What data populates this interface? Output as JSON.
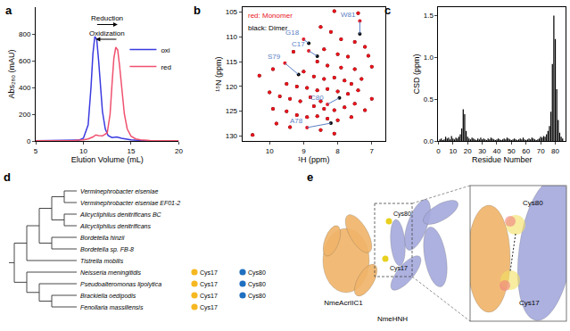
{
  "chart_data": [
    {
      "panel": "a",
      "type": "line",
      "x_label": "Elution Volume (mL)",
      "y_label": "Abs₂₈₀ (mAU)",
      "xlim": [
        5,
        20
      ],
      "xticks": [
        5,
        10,
        15,
        20
      ],
      "ylim": [
        0,
        1000
      ],
      "yticks": [
        0,
        200,
        400,
        600,
        800
      ],
      "legend": "upper right",
      "series": [
        {
          "name": "oxi",
          "color": "#3a3ae0",
          "x": [
            5,
            6,
            7,
            8,
            9,
            9.5,
            10,
            10.5,
            10.8,
            11,
            11.2,
            11.4,
            11.6,
            11.8,
            12,
            12.3,
            12.6,
            13,
            13.5,
            14,
            15,
            16,
            17,
            18,
            19,
            20
          ],
          "values": [
            2,
            2,
            2,
            3,
            4,
            6,
            20,
            120,
            400,
            650,
            780,
            760,
            600,
            380,
            220,
            90,
            40,
            25,
            30,
            20,
            8,
            4,
            3,
            2,
            2,
            2
          ]
        },
        {
          "name": "red",
          "color": "#f0506e",
          "x": [
            5,
            6,
            7,
            8,
            9,
            10,
            10.5,
            11,
            11.3,
            11.6,
            12,
            12.5,
            12.8,
            13,
            13.2,
            13.4,
            13.6,
            13.8,
            14,
            14.3,
            14.6,
            15,
            15.5,
            16,
            17,
            18,
            19,
            20
          ],
          "values": [
            2,
            2,
            2,
            3,
            4,
            8,
            15,
            30,
            45,
            40,
            38,
            60,
            200,
            420,
            620,
            700,
            680,
            560,
            400,
            200,
            90,
            35,
            15,
            8,
            4,
            3,
            2,
            2
          ]
        }
      ],
      "annotations": [
        {
          "text": "Reduction",
          "from": 11.3,
          "to": 13.6,
          "y": 870
        },
        {
          "text": "Oxidization",
          "from": 13.6,
          "to": 11.3,
          "y": 760
        }
      ]
    },
    {
      "panel": "b",
      "type": "scatter",
      "x_label": "¹H (ppm)",
      "y_label": "¹⁵N (ppm)",
      "xlim": [
        10.8,
        6.6
      ],
      "xticks": [
        10,
        9,
        8,
        7
      ],
      "ylim": [
        131,
        104
      ],
      "yticks": [
        105,
        110,
        115,
        120,
        125,
        130
      ],
      "series": [
        {
          "name": "red: Monomer",
          "color": "#e8141c",
          "x": [
            8.1,
            7.4,
            8.5,
            8.2,
            7.9,
            7.5,
            7.2,
            8.4,
            8.0,
            7.7,
            7.1,
            9.3,
            8.6,
            8.3,
            7.9,
            7.5,
            7.0,
            9.9,
            10.3,
            9.0,
            8.7,
            8.4,
            8.1,
            7.8,
            7.6,
            7.3,
            9.5,
            9.2,
            8.9,
            8.6,
            8.3,
            8.0,
            7.7,
            7.4,
            10.0,
            9.7,
            9.4,
            9.1,
            8.8,
            8.5,
            8.7,
            8.4,
            8.1,
            7.8,
            7.5,
            9.9,
            9.5,
            9.2,
            8.9,
            8.6,
            8.3,
            8.0,
            7.6,
            9.8,
            9.4,
            8.5,
            8.1,
            10.5,
            7.2,
            7.0,
            9.0,
            8.85,
            9.55,
            7.35,
            8.9,
            8.3
          ],
          "values": [
            104.8,
            105.2,
            108,
            109,
            110.5,
            111,
            112,
            112.5,
            113.5,
            114,
            113.8,
            113,
            115,
            115.8,
            116.2,
            116.5,
            116,
            116.5,
            117.8,
            117,
            118,
            118.5,
            118.2,
            118.8,
            119.5,
            118.5,
            119.5,
            120,
            120.3,
            120.8,
            120.5,
            121,
            121.5,
            120.8,
            121.2,
            122,
            122.5,
            123,
            122.2,
            123,
            124,
            124.5,
            124.8,
            124.2,
            123.5,
            124.5,
            125,
            125.8,
            126.2,
            126,
            126.5,
            126.8,
            126.2,
            127.5,
            128.2,
            128.8,
            129.5,
            129.8,
            124.8,
            122.5,
            110.5,
            112.8,
            115.3,
            106.8,
            128.3,
            123.6
          ]
        },
        {
          "name": "black: Dimer",
          "color": "#000000",
          "x": [
            8.1,
            7.4,
            8.5,
            8.2,
            7.9,
            7.5,
            7.2,
            8.4,
            8.0,
            7.7,
            7.1,
            9.3,
            8.6,
            8.3,
            7.9,
            7.5,
            7.0,
            9.9,
            10.3,
            9.0,
            8.7,
            8.4,
            8.1,
            7.8,
            7.6,
            7.3,
            9.5,
            9.2,
            8.9,
            8.6,
            8.3,
            8.0,
            7.7,
            7.4,
            10.0,
            9.7,
            9.4,
            9.1,
            8.8,
            8.5,
            8.7,
            8.4,
            8.1,
            7.8,
            7.5,
            9.9,
            9.5,
            9.2,
            8.9,
            8.6,
            8.3,
            8.0,
            7.6,
            9.8,
            9.4,
            8.5,
            8.1,
            10.5,
            7.2,
            7.0,
            8.85,
            8.6,
            9.15,
            7.35,
            8.2,
            7.95
          ],
          "values": [
            104.8,
            105.2,
            108,
            109,
            110.5,
            111,
            112,
            112.5,
            113.5,
            114,
            113.8,
            113,
            115,
            115.8,
            116.2,
            116.5,
            116,
            116.5,
            117.8,
            117,
            118,
            118.5,
            118.2,
            118.8,
            119.5,
            118.5,
            119.5,
            120,
            120.3,
            120.8,
            120.5,
            121,
            121.5,
            120.8,
            121.2,
            122,
            122.5,
            123,
            122.2,
            123,
            124,
            124.5,
            124.8,
            124.2,
            123.5,
            124.5,
            125,
            125.8,
            126.2,
            126,
            126.5,
            126.8,
            126.2,
            127.5,
            128.2,
            128.8,
            129.5,
            129.8,
            124.8,
            122.5,
            111.3,
            113.9,
            117.6,
            109.4,
            127.4,
            122.3
          ]
        }
      ],
      "assignment_color": "#5b7fc4",
      "assignments": [
        {
          "label": "G18",
          "x": [
            9.0,
            8.85
          ],
          "y": [
            110.5,
            111.3
          ]
        },
        {
          "label": "C17",
          "x": [
            8.85,
            8.6
          ],
          "y": [
            112.8,
            113.9
          ]
        },
        {
          "label": "S79",
          "x": [
            9.55,
            9.15
          ],
          "y": [
            115.3,
            117.6
          ]
        },
        {
          "label": "W81",
          "x": [
            7.35,
            7.35
          ],
          "y": [
            106.8,
            109.4
          ]
        },
        {
          "label": "A78",
          "x": [
            8.9,
            8.2
          ],
          "y": [
            128.3,
            127.4
          ]
        },
        {
          "label": "C80",
          "x": [
            8.3,
            7.95
          ],
          "y": [
            123.6,
            122.3
          ]
        }
      ]
    },
    {
      "panel": "c",
      "type": "bar",
      "x_label": "Residue Number",
      "y_label": "CSD (ppm)",
      "xlim": [
        0,
        87
      ],
      "xticks": [
        0,
        10,
        20,
        30,
        40,
        50,
        60,
        70,
        80
      ],
      "ylim": [
        0,
        1.6
      ],
      "yticks": [
        {
          "value": 0,
          "label": "0.0"
        },
        0.5,
        {
          "value": 1,
          "label": "1.0"
        },
        1.5
      ],
      "color": "#000000",
      "x": [
        1,
        2,
        3,
        4,
        5,
        6,
        7,
        8,
        9,
        10,
        11,
        12,
        13,
        14,
        15,
        16,
        17,
        18,
        19,
        20,
        21,
        22,
        23,
        24,
        25,
        26,
        27,
        28,
        29,
        30,
        31,
        32,
        33,
        34,
        35,
        36,
        37,
        38,
        39,
        40,
        41,
        42,
        43,
        44,
        45,
        46,
        47,
        48,
        49,
        50,
        51,
        52,
        53,
        54,
        55,
        56,
        57,
        58,
        59,
        60,
        61,
        62,
        63,
        64,
        65,
        66,
        67,
        68,
        69,
        70,
        71,
        72,
        73,
        74,
        75,
        76,
        77,
        78,
        79,
        80,
        81,
        82,
        83,
        84,
        85
      ],
      "values": [
        0.02,
        0.03,
        0.01,
        0.02,
        0.05,
        0.03,
        0.04,
        0.02,
        0.06,
        0.03,
        0.02,
        0.04,
        0.03,
        0.05,
        0.08,
        0.15,
        0.38,
        0.32,
        0.12,
        0.05,
        0.03,
        0.02,
        0.04,
        0.03,
        0.02,
        0.01,
        0.03,
        0.02,
        0.04,
        0.02,
        0.03,
        0.02,
        0.01,
        0.03,
        0.02,
        0.04,
        0.03,
        0.02,
        0.01,
        0.02,
        0.03,
        0.02,
        0.01,
        0.02,
        0.03,
        0.02,
        0.04,
        0.03,
        0.02,
        0.01,
        0.02,
        0.03,
        0.02,
        0.01,
        0.02,
        0.03,
        0.02,
        0.04,
        0.02,
        0.01,
        0.02,
        0.03,
        0.02,
        0.04,
        0.03,
        0.02,
        0.01,
        0.02,
        0.03,
        0.05,
        0.04,
        0.06,
        0.05,
        0.08,
        0.12,
        0.18,
        0.35,
        0.92,
        1.5,
        1.22,
        0.62,
        0.25,
        0.1,
        0.05,
        0.03
      ]
    }
  ],
  "tree_panel": {
    "panel": "d",
    "markers": [
      {
        "label": "Cys17",
        "color": "#f5b820"
      },
      {
        "label": "Cys80",
        "color": "#1f6fc0"
      }
    ],
    "tree": {
      "children": [
        {
          "children": [
            {
              "children": [
                {
                  "children": [
                    {
                      "children": [
                        {
                          "name": "Verminephrobacter eiseniae"
                        },
                        {
                          "name": "Verminephrobacter eiseniae EF01-2"
                        }
                      ]
                    },
                    {
                      "children": [
                        {
                          "name": "Alicycliphilus denitrificans BC"
                        },
                        {
                          "name": "Alicycliphilus denitrificans"
                        }
                      ]
                    }
                  ]
                },
                {
                  "children": [
                    {
                      "name": "Bordetella hinzii"
                    },
                    {
                      "name": "Bordetella sp. FB-8"
                    }
                  ]
                }
              ]
            },
            {
              "name": "Tistrella mobilis"
            }
          ]
        },
        {
          "children": [
            {
              "name": "Neisseria meningitidis",
              "cys": [
                "Cys17",
                "Cys80"
              ]
            },
            {
              "children": [
                {
                  "name": "Pseudoalteromonas lipolytica",
                  "cys": [
                    "Cys17",
                    "Cys80"
                  ]
                },
                {
                  "children": [
                    {
                      "name": "Brackiella oedipodis",
                      "cys": [
                        "Cys17",
                        "Cys80"
                      ]
                    },
                    {
                      "name": "Fenollaria massiliensis",
                      "cys": [
                        "Cys17"
                      ]
                    }
                  ]
                }
              ]
            }
          ]
        }
      ]
    }
  },
  "structure_panel": {
    "panel": "e",
    "chains": [
      {
        "name": "NmeAcrIIC1",
        "color": "#f0b468"
      },
      {
        "name": "NmeHNH",
        "color": "#a4a8dc"
      }
    ],
    "residues": [
      "Cys80",
      "Cys17"
    ]
  }
}
